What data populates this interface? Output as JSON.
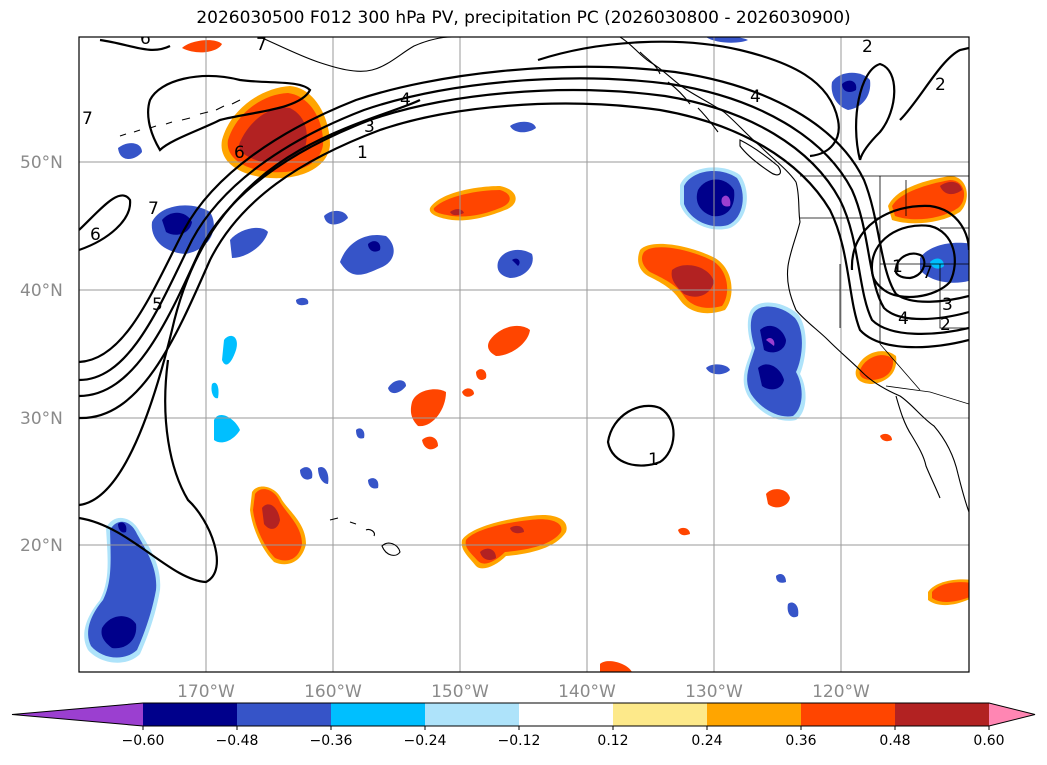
{
  "chart_data": {
    "type": "map",
    "title": "2026030500 F012 300 hPa PV, precipitation PC (2026030800 - 2026030900)",
    "lat_ticks": [
      "50°N",
      "40°N",
      "30°N",
      "20°N"
    ],
    "lon_ticks": [
      "170°W",
      "160°W",
      "150°W",
      "140°W",
      "130°W",
      "120°W"
    ],
    "contour_variable": "300 hPa PV",
    "contour_labels": [
      "1",
      "2",
      "3",
      "4",
      "5",
      "6",
      "7",
      "1",
      "2",
      "3",
      "4",
      "6",
      "7",
      "1",
      "2",
      "3",
      "4",
      "5",
      "6",
      "7",
      "6",
      "2"
    ],
    "colorbar": {
      "levels": [
        "−0.60",
        "−0.48",
        "−0.36",
        "−0.24",
        "−0.12",
        "0.12",
        "0.24",
        "0.36",
        "0.48",
        "0.60"
      ],
      "colors": [
        "#9b3fd0",
        "#00008b",
        "#3654c8",
        "#00bfff",
        "#aee3fa",
        "#ffffff",
        "#fde98a",
        "#ffa500",
        "#ff4500",
        "#b22222",
        "#ff86b3"
      ],
      "extend": "both"
    }
  }
}
